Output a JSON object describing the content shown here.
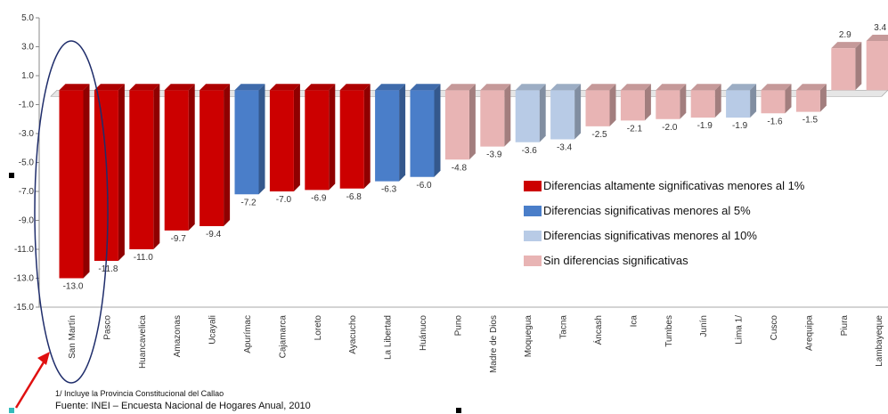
{
  "chart_data": {
    "type": "bar",
    "categories": [
      "San Martín",
      "Pasco",
      "Huancavelica",
      "Amazonas",
      "Ucayali",
      "Apurímac",
      "Cajamarca",
      "Loreto",
      "Ayacucho",
      "La Libertad",
      "Huánuco",
      "Puno",
      "Madre de Dios",
      "Moquegua",
      "Tacna",
      "Áncash",
      "Ica",
      "Tumbes",
      "Junín",
      "Lima 1/",
      "Cusco",
      "Arequipa",
      "Piura",
      "Lambayeque"
    ],
    "values": [
      -13.0,
      -11.8,
      -11.0,
      -9.7,
      -9.4,
      -7.2,
      -7.0,
      -6.9,
      -6.8,
      -6.3,
      -6.0,
      -4.8,
      -3.9,
      -3.6,
      -3.4,
      -2.5,
      -2.1,
      -2.0,
      -1.9,
      -1.9,
      -1.6,
      -1.5,
      2.9,
      3.4
    ],
    "value_labels": [
      "-13.0",
      "-11.8",
      "-11.0",
      "-9.7",
      "-9.4",
      "-7.2",
      "-7.0",
      "-6.9",
      "-6.8",
      "-6.3",
      "-6.0",
      "-4.8",
      "-3.9",
      "-3.6",
      "-3.4",
      "-2.5",
      "-2.1",
      "-2.0",
      "-1.9",
      "-1.9",
      "-1.6",
      "-1.5",
      "2.9",
      "3.4"
    ],
    "groups": [
      0,
      0,
      0,
      0,
      0,
      1,
      0,
      0,
      0,
      1,
      1,
      3,
      3,
      2,
      2,
      3,
      3,
      3,
      3,
      2,
      3,
      3,
      3,
      3
    ],
    "legend": [
      {
        "label": "Diferencias altamente significativas menores al 1%",
        "color": "#cc0000"
      },
      {
        "label": "Diferencias significativas menores al 5%",
        "color": "#4a7ec9"
      },
      {
        "label": "Diferencias significativas menores al 10%",
        "color": "#b8cbe6"
      },
      {
        "label": "Sin diferencias significativas",
        "color": "#e8b4b4"
      }
    ],
    "ylim": [
      -15,
      5
    ],
    "yticks": [
      5.0,
      3.0,
      1.0,
      -1.0,
      -3.0,
      -5.0,
      -7.0,
      -9.0,
      -11.0,
      -13.0,
      -15.0
    ],
    "ytick_labels": [
      "5.0",
      "3.0",
      "1.0",
      "-1.0",
      "-3.0",
      "-5.0",
      "-7.0",
      "-9.0",
      "-11.0",
      "-13.0",
      "-15.0"
    ],
    "legend_position": "right",
    "grid": false,
    "highlight_category": "San Martín",
    "footnote": "1/ Incluye la Provincia Constitucional del Callao",
    "source": "Fuente: INEI – Encuesta Nacional de Hogares Anual, 2010"
  }
}
